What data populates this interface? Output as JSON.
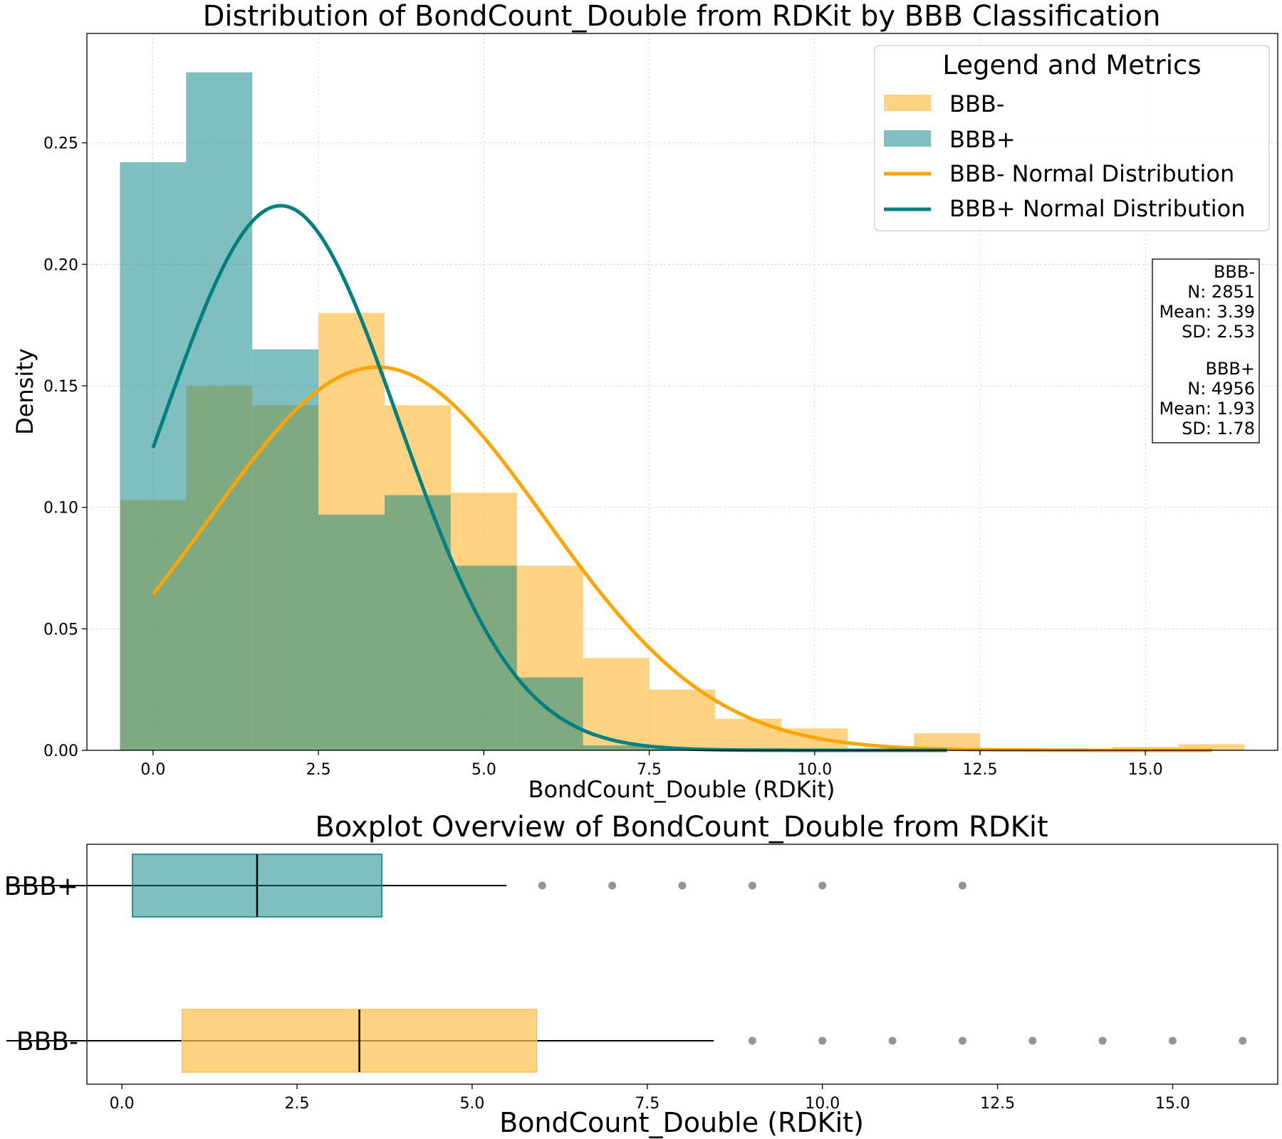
{
  "chart_data": [
    {
      "type": "histogram",
      "title": "Distribution of BondCount_Double from RDKit by BBB Classification",
      "xlabel": "BondCount_Double (RDKit)",
      "ylabel": "Density",
      "xlim": [
        -1.0,
        17.0
      ],
      "ylim": [
        0,
        0.295
      ],
      "grid": true,
      "x_ticks": [
        0.0,
        2.5,
        5.0,
        7.5,
        10.0,
        12.5,
        15.0
      ],
      "x_tick_labels": [
        "0.0",
        "2.5",
        "5.0",
        "7.5",
        "10.0",
        "12.5",
        "15.0"
      ],
      "y_ticks": [
        0.0,
        0.05,
        0.1,
        0.15,
        0.2,
        0.25
      ],
      "y_tick_labels": [
        "0.00",
        "0.05",
        "0.10",
        "0.15",
        "0.20",
        "0.25"
      ],
      "legend": {
        "title": "Legend and Metrics",
        "position": "top-right",
        "entries": [
          "BBB-",
          "BBB+",
          "BBB- Normal Distribution",
          "BBB+ Normal Distribution"
        ]
      },
      "series": [
        {
          "name": "BBB-",
          "kind": "histogram",
          "color": "#ffc04d",
          "bins": [
            {
              "x0": -0.5,
              "x1": 0.5,
              "density": 0.103
            },
            {
              "x0": 0.5,
              "x1": 1.5,
              "density": 0.15
            },
            {
              "x0": 1.5,
              "x1": 2.5,
              "density": 0.142
            },
            {
              "x0": 2.5,
              "x1": 3.5,
              "density": 0.18
            },
            {
              "x0": 3.5,
              "x1": 4.5,
              "density": 0.142
            },
            {
              "x0": 4.5,
              "x1": 5.5,
              "density": 0.106
            },
            {
              "x0": 5.5,
              "x1": 6.5,
              "density": 0.076
            },
            {
              "x0": 6.5,
              "x1": 7.5,
              "density": 0.038
            },
            {
              "x0": 7.5,
              "x1": 8.5,
              "density": 0.025
            },
            {
              "x0": 8.5,
              "x1": 9.5,
              "density": 0.013
            },
            {
              "x0": 9.5,
              "x1": 10.5,
              "density": 0.009
            },
            {
              "x0": 10.5,
              "x1": 11.5,
              "density": 0.0
            },
            {
              "x0": 11.5,
              "x1": 12.5,
              "density": 0.007
            },
            {
              "x0": 12.5,
              "x1": 13.5,
              "density": 0.001
            },
            {
              "x0": 13.5,
              "x1": 14.5,
              "density": 0.0007
            },
            {
              "x0": 14.5,
              "x1": 15.5,
              "density": 0.0014
            },
            {
              "x0": 15.5,
              "x1": 16.5,
              "density": 0.0025
            }
          ]
        },
        {
          "name": "BBB+",
          "kind": "histogram",
          "color": "#008080",
          "bins": [
            {
              "x0": -0.5,
              "x1": 0.5,
              "density": 0.242
            },
            {
              "x0": 0.5,
              "x1": 1.5,
              "density": 0.279
            },
            {
              "x0": 1.5,
              "x1": 2.5,
              "density": 0.165
            },
            {
              "x0": 2.5,
              "x1": 3.5,
              "density": 0.097
            },
            {
              "x0": 3.5,
              "x1": 4.5,
              "density": 0.105
            },
            {
              "x0": 4.5,
              "x1": 5.5,
              "density": 0.076
            },
            {
              "x0": 5.5,
              "x1": 6.5,
              "density": 0.03
            },
            {
              "x0": 6.5,
              "x1": 7.5,
              "density": 0.002
            },
            {
              "x0": 7.5,
              "x1": 8.5,
              "density": 0.0006
            },
            {
              "x0": 8.5,
              "x1": 9.5,
              "density": 0.0004
            },
            {
              "x0": 9.5,
              "x1": 10.5,
              "density": 0.0002
            },
            {
              "x0": 11.5,
              "x1": 12.5,
              "density": 0.0004
            }
          ]
        },
        {
          "name": "BBB- Normal Distribution",
          "kind": "normal_curve",
          "color": "#ffa500",
          "mean": 3.39,
          "sd": 2.53,
          "x_range": [
            0,
            16
          ]
        },
        {
          "name": "BBB+ Normal Distribution",
          "kind": "normal_curve",
          "color": "#008080",
          "mean": 1.93,
          "sd": 1.78,
          "x_range": [
            0,
            12
          ]
        }
      ],
      "metrics_box": {
        "lines": [
          "BBB-",
          "N: 2851",
          "Mean: 3.39",
          "SD: 2.53",
          "",
          "BBB+",
          "N: 4956",
          "Mean: 1.93",
          "SD: 1.78"
        ]
      }
    },
    {
      "type": "boxplot",
      "title": "Boxplot Overview of BondCount_Double from RDKit",
      "xlabel": "BondCount_Double (RDKit)",
      "ylabel": "",
      "xlim": [
        -0.5,
        16.5
      ],
      "grid": false,
      "x_ticks": [
        0.0,
        2.5,
        5.0,
        7.5,
        10.0,
        12.5,
        15.0
      ],
      "x_tick_labels": [
        "0.0",
        "2.5",
        "5.0",
        "7.5",
        "10.0",
        "12.5",
        "15.0"
      ],
      "categories": [
        "BBB+",
        "BBB-"
      ],
      "boxes": [
        {
          "name": "BBB+",
          "color": "#008080",
          "whisker_low": -1.65,
          "q1": 0.15,
          "median": 1.93,
          "q3": 3.71,
          "whisker_high": 5.49,
          "outliers": [
            6,
            7,
            8,
            9,
            10,
            12
          ]
        },
        {
          "name": "BBB-",
          "color": "#ffc04d",
          "whisker_low": -1.65,
          "q1": 0.86,
          "median": 3.39,
          "q3": 5.92,
          "whisker_high": 8.45,
          "outliers": [
            9,
            10,
            11,
            12,
            13,
            14,
            15,
            16
          ]
        }
      ]
    }
  ]
}
